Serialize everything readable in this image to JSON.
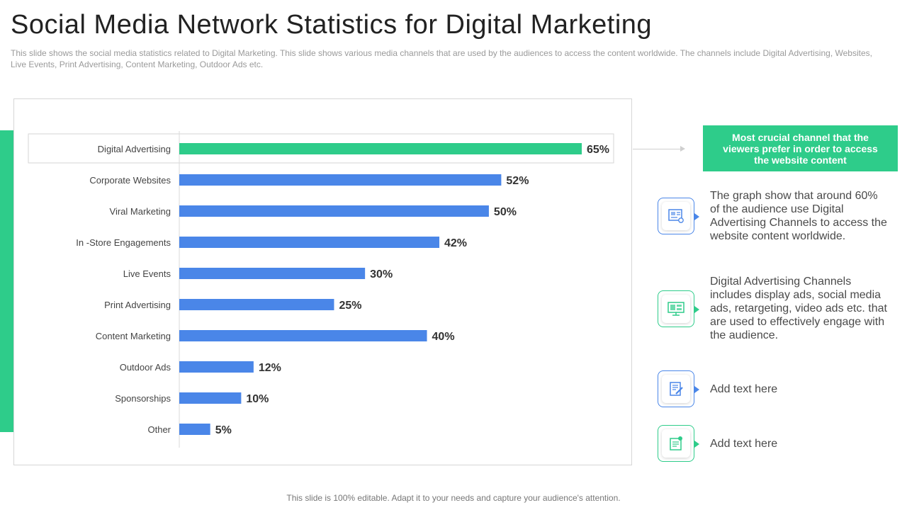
{
  "header": {
    "title": "Social Media Network Statistics for Digital Marketing",
    "subtitle": "This slide shows the social media statistics related to Digital Marketing. This slide shows various media channels that are used by the audiences to access the content worldwide. The channels include Digital Advertising, Websites, Live Events, Print Advertising, Content Marketing, Outdoor Ads etc."
  },
  "chart_data": {
    "type": "bar",
    "orientation": "horizontal",
    "categories": [
      "Digital Advertising",
      "Corporate Websites",
      "Viral Marketing",
      "In -Store Engagements",
      "Live Events",
      "Print Advertising",
      "Content Marketing",
      "Outdoor Ads",
      "Sponsorships",
      "Other"
    ],
    "values": [
      65,
      52,
      50,
      42,
      30,
      25,
      40,
      12,
      10,
      5
    ],
    "labels": [
      "65%",
      "52%",
      "50%",
      "42%",
      "30%",
      "25%",
      "40%",
      "12%",
      "10%",
      "5%"
    ],
    "highlight_index": 0,
    "title": "",
    "xlabel": "",
    "ylabel": "",
    "xlim": [
      0,
      65
    ],
    "grid": false,
    "legend": "none"
  },
  "colors": {
    "accent_green": "#2ecc8a",
    "bar_blue": "#4a86e8",
    "icon_blue": "#4a86e8"
  },
  "callout": {
    "text": "Most crucial channel that the viewers prefer in order to access the website content"
  },
  "info_items": [
    {
      "icon": "presentation-board-icon",
      "text": "The graph show that around 60% of the audience use Digital Advertising Channels to access the website content worldwide."
    },
    {
      "icon": "monitor-ads-icon",
      "text": "Digital Advertising Channels includes display ads, social media ads, retargeting, video ads etc. that are used to effectively engage with the audience."
    },
    {
      "icon": "document-edit-icon",
      "text": "Add text here"
    },
    {
      "icon": "notepad-icon",
      "text": "Add text here"
    }
  ],
  "footer": {
    "text": "This slide is 100% editable. Adapt it to your needs and capture your audience's attention."
  }
}
